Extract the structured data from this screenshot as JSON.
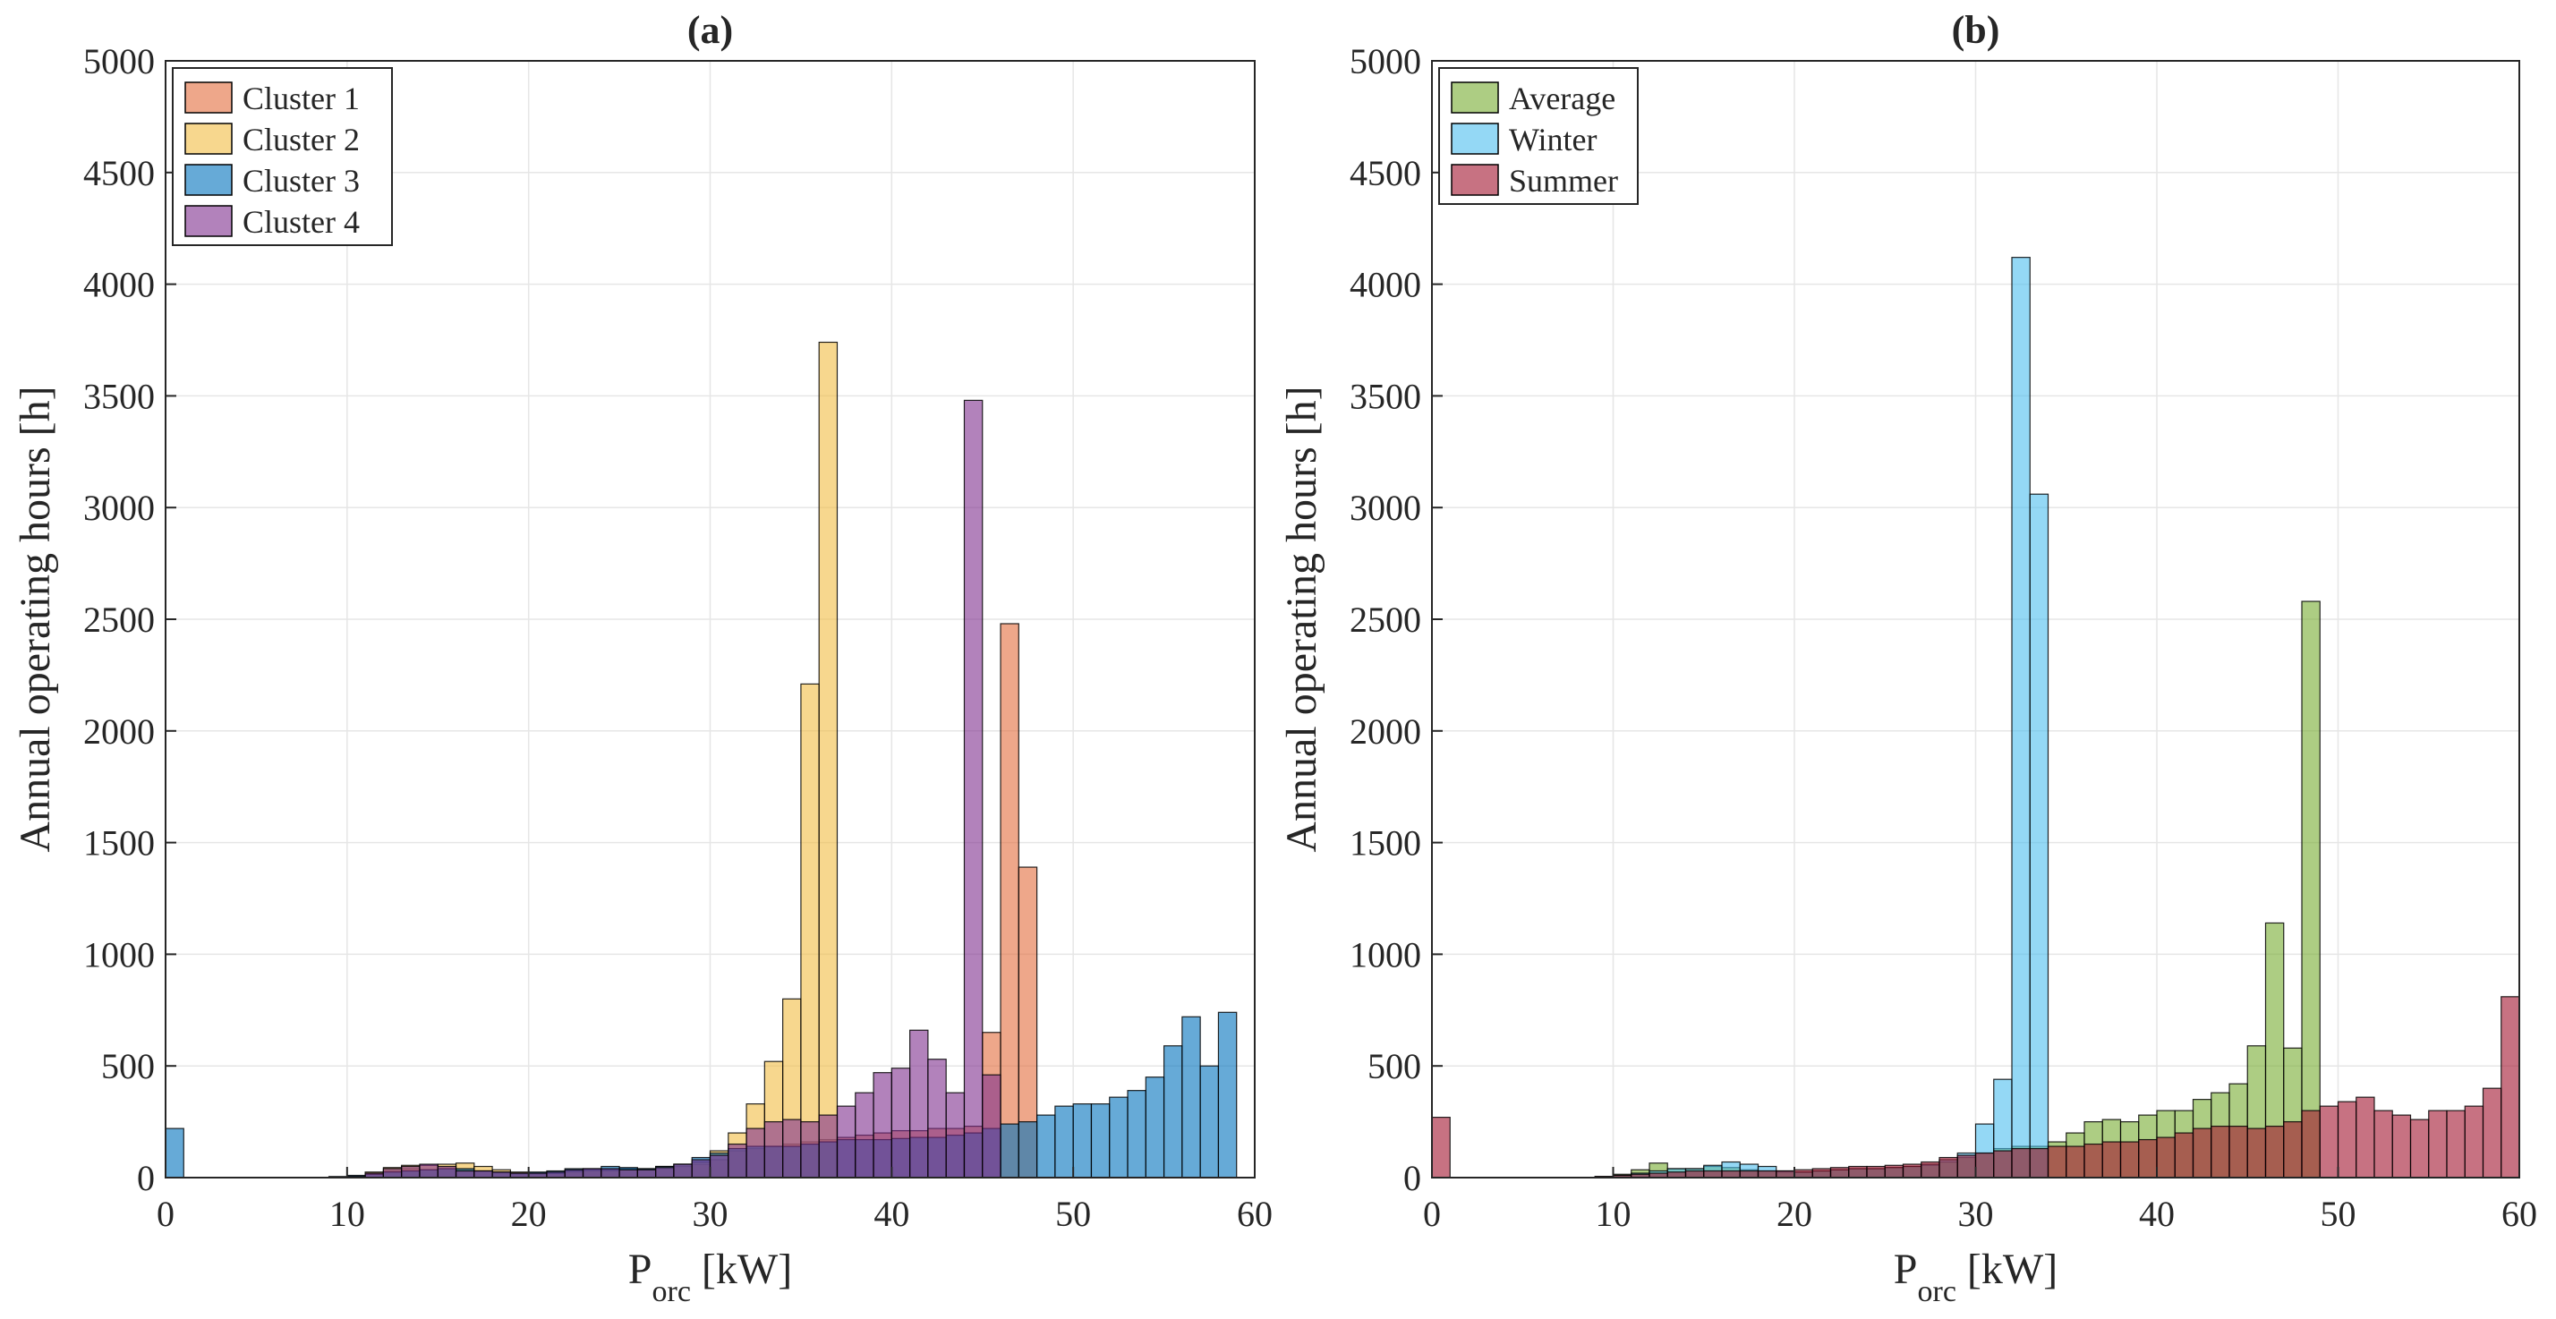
{
  "chart_data": [
    {
      "type": "bar",
      "title": "(a)",
      "xlabel_main": "P",
      "xlabel_sub": "orc",
      "xlabel_unit": "[kW]",
      "ylabel": "Annual operating hours [h]",
      "xlim": [
        0,
        60
      ],
      "ylim": [
        0,
        5000
      ],
      "xticks": [
        "0",
        "10",
        "20",
        "30",
        "40",
        "50",
        "60"
      ],
      "yticks": [
        "0",
        "500",
        "1000",
        "1500",
        "2000",
        "2500",
        "3000",
        "3500",
        "4000",
        "4500",
        "5000"
      ],
      "grid": true,
      "legend_position": "top-left",
      "bin_width_kW": 1,
      "bin_start_kW": 0,
      "series": [
        {
          "name": "Cluster 1",
          "color": "#E26D3C",
          "values": [
            0,
            0,
            0,
            0,
            0,
            0,
            0,
            0,
            0,
            0,
            5,
            15,
            30,
            40,
            35,
            40,
            35,
            30,
            20,
            15,
            15,
            20,
            25,
            30,
            30,
            35,
            35,
            40,
            50,
            60,
            80,
            120,
            130,
            140,
            150,
            160,
            170,
            180,
            190,
            200,
            210,
            210,
            220,
            220,
            230,
            650,
            2480,
            1390,
            0,
            0,
            0,
            0,
            0,
            0,
            0,
            0,
            0,
            0,
            0,
            0
          ]
        },
        {
          "name": "Cluster 2",
          "color": "#F2BC43",
          "values": [
            0,
            0,
            0,
            0,
            0,
            0,
            0,
            0,
            0,
            0,
            5,
            25,
            45,
            55,
            55,
            60,
            65,
            50,
            35,
            25,
            20,
            20,
            30,
            35,
            35,
            40,
            40,
            50,
            60,
            70,
            120,
            200,
            330,
            520,
            800,
            2210,
            3740,
            0,
            0,
            0,
            0,
            0,
            0,
            0,
            0,
            0,
            0,
            0,
            0,
            0,
            0,
            0,
            0,
            0,
            0,
            0,
            0,
            0,
            0,
            0
          ]
        },
        {
          "name": "Cluster 3",
          "color": "#0072BD",
          "values": [
            220,
            0,
            0,
            0,
            0,
            0,
            0,
            0,
            0,
            5,
            10,
            15,
            25,
            30,
            35,
            40,
            40,
            30,
            25,
            20,
            25,
            30,
            40,
            40,
            50,
            45,
            40,
            50,
            60,
            90,
            110,
            130,
            140,
            140,
            140,
            150,
            160,
            170,
            170,
            170,
            175,
            180,
            180,
            190,
            200,
            220,
            240,
            250,
            280,
            320,
            330,
            330,
            360,
            390,
            450,
            590,
            720,
            500,
            740,
            0
          ]
        },
        {
          "name": "Cluster 4",
          "color": "#7E2F8E",
          "values": [
            0,
            0,
            0,
            0,
            0,
            0,
            0,
            0,
            0,
            0,
            5,
            20,
            40,
            50,
            60,
            50,
            30,
            30,
            25,
            20,
            20,
            25,
            35,
            40,
            40,
            35,
            35,
            45,
            60,
            80,
            100,
            150,
            220,
            250,
            260,
            250,
            280,
            320,
            380,
            470,
            490,
            660,
            530,
            380,
            3480,
            460,
            0,
            0,
            0,
            0,
            0,
            0,
            0,
            0,
            0,
            0,
            0,
            0,
            0,
            0
          ]
        }
      ]
    },
    {
      "type": "bar",
      "title": "(b)",
      "xlabel_main": "P",
      "xlabel_sub": "orc",
      "xlabel_unit": "[kW]",
      "ylabel": "Annual operating hours [h]",
      "xlim": [
        0,
        60
      ],
      "ylim": [
        0,
        5000
      ],
      "xticks": [
        "0",
        "10",
        "20",
        "30",
        "40",
        "50",
        "60"
      ],
      "yticks": [
        "0",
        "500",
        "1000",
        "1500",
        "2000",
        "2500",
        "3000",
        "3500",
        "4000",
        "4500",
        "5000"
      ],
      "grid": true,
      "legend_position": "top-left",
      "bin_width_kW": 1,
      "bin_start_kW": 0,
      "series": [
        {
          "name": "Average",
          "color": "#77AC30",
          "values": [
            0,
            0,
            0,
            0,
            0,
            0,
            0,
            0,
            0,
            5,
            15,
            35,
            65,
            40,
            40,
            50,
            45,
            35,
            30,
            25,
            25,
            30,
            35,
            40,
            40,
            45,
            50,
            55,
            70,
            90,
            110,
            130,
            140,
            140,
            160,
            200,
            250,
            260,
            250,
            280,
            300,
            300,
            350,
            380,
            420,
            590,
            1140,
            580,
            2580,
            0,
            0,
            0,
            0,
            0,
            0,
            0,
            0,
            0,
            0,
            0
          ]
        },
        {
          "name": "Winter",
          "color": "#4DBEEE",
          "values": [
            0,
            0,
            0,
            0,
            0,
            0,
            0,
            0,
            0,
            0,
            10,
            20,
            30,
            40,
            40,
            55,
            70,
            60,
            50,
            30,
            25,
            30,
            35,
            40,
            40,
            45,
            50,
            60,
            80,
            110,
            240,
            440,
            4120,
            3060,
            0,
            0,
            0,
            0,
            0,
            0,
            0,
            0,
            0,
            0,
            0,
            0,
            0,
            0,
            0,
            0,
            0,
            0,
            0,
            0,
            0,
            0,
            0,
            0,
            0,
            0
          ]
        },
        {
          "name": "Summer",
          "color": "#A2142F",
          "values": [
            270,
            0,
            0,
            0,
            0,
            0,
            0,
            0,
            0,
            5,
            10,
            15,
            20,
            25,
            30,
            30,
            30,
            30,
            30,
            30,
            35,
            40,
            45,
            50,
            50,
            55,
            60,
            70,
            90,
            100,
            110,
            120,
            130,
            130,
            140,
            140,
            150,
            160,
            160,
            170,
            180,
            200,
            220,
            230,
            230,
            220,
            230,
            250,
            300,
            320,
            340,
            360,
            300,
            280,
            260,
            300,
            300,
            320,
            400,
            810
          ]
        }
      ]
    }
  ]
}
